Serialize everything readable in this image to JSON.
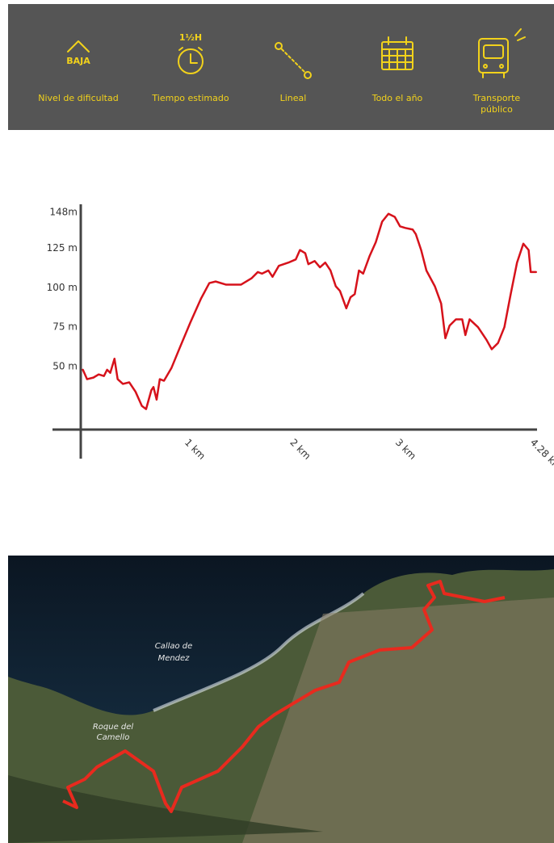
{
  "header": {
    "items": [
      {
        "icon_text": "BAJA",
        "label": "Nivel de dificultad"
      },
      {
        "icon_text": "1½H",
        "label": "Tiempo estimado"
      },
      {
        "label": "Lineal"
      },
      {
        "label": "Todo el año"
      },
      {
        "label": "Transporte",
        "label2": "público"
      }
    ]
  },
  "chart_data": {
    "type": "line",
    "color": "#d6121b",
    "x": [
      0.02,
      0.06,
      0.12,
      0.17,
      0.22,
      0.25,
      0.28,
      0.32,
      0.35,
      0.4,
      0.46,
      0.52,
      0.58,
      0.62,
      0.67,
      0.69,
      0.72,
      0.75,
      0.79,
      0.86,
      0.94,
      1.04,
      1.14,
      1.22,
      1.28,
      1.38,
      1.52,
      1.62,
      1.68,
      1.72,
      1.78,
      1.82,
      1.88,
      1.97,
      2.04,
      2.08,
      2.13,
      2.16,
      2.22,
      2.27,
      2.32,
      2.37,
      2.42,
      2.46,
      2.52,
      2.56,
      2.6,
      2.64,
      2.68,
      2.74,
      2.8,
      2.86,
      2.92,
      2.98,
      3.03,
      3.08,
      3.15,
      3.18,
      3.23,
      3.28,
      3.36,
      3.42,
      3.46,
      3.5,
      3.56,
      3.62,
      3.65,
      3.69,
      3.77,
      3.85,
      3.9,
      3.96,
      4.02,
      4.08,
      4.14,
      4.2,
      4.25,
      4.27,
      4.32
    ],
    "values": [
      48,
      42,
      43,
      45,
      44,
      48,
      46,
      55,
      42,
      39,
      40,
      34,
      25,
      23,
      35,
      37,
      29,
      42,
      41,
      49,
      62,
      78,
      93,
      103,
      104,
      102,
      102,
      106,
      110,
      109,
      111,
      107,
      114,
      116,
      118,
      124,
      122,
      115,
      117,
      113,
      116,
      111,
      101,
      98,
      87,
      94,
      96,
      111,
      109,
      120,
      129,
      142,
      147,
      145,
      139,
      138,
      137,
      134,
      124,
      111,
      101,
      90,
      68,
      76,
      80,
      80,
      70,
      80,
      75,
      67,
      61,
      65,
      75,
      96,
      116,
      128,
      124,
      110,
      110
    ],
    "xlim": [
      0,
      4.33
    ],
    "ylim": [
      10,
      152
    ],
    "xticks": [
      {
        "value": 1,
        "label": "1 km"
      },
      {
        "value": 2,
        "label": "2 km"
      },
      {
        "value": 3,
        "label": "3 km"
      },
      {
        "value": 4.28,
        "label": "4.28 km"
      }
    ],
    "yticks": [
      {
        "value": 50,
        "label": "50 m"
      },
      {
        "value": 75,
        "label": "75 m"
      },
      {
        "value": 100,
        "label": "100 m"
      },
      {
        "value": 125,
        "label": "125 m"
      },
      {
        "value": 148,
        "label": "148m"
      }
    ]
  },
  "map": {
    "labels": [
      "Callao de",
      "Mendez",
      "Roque del",
      "Camello"
    ]
  }
}
